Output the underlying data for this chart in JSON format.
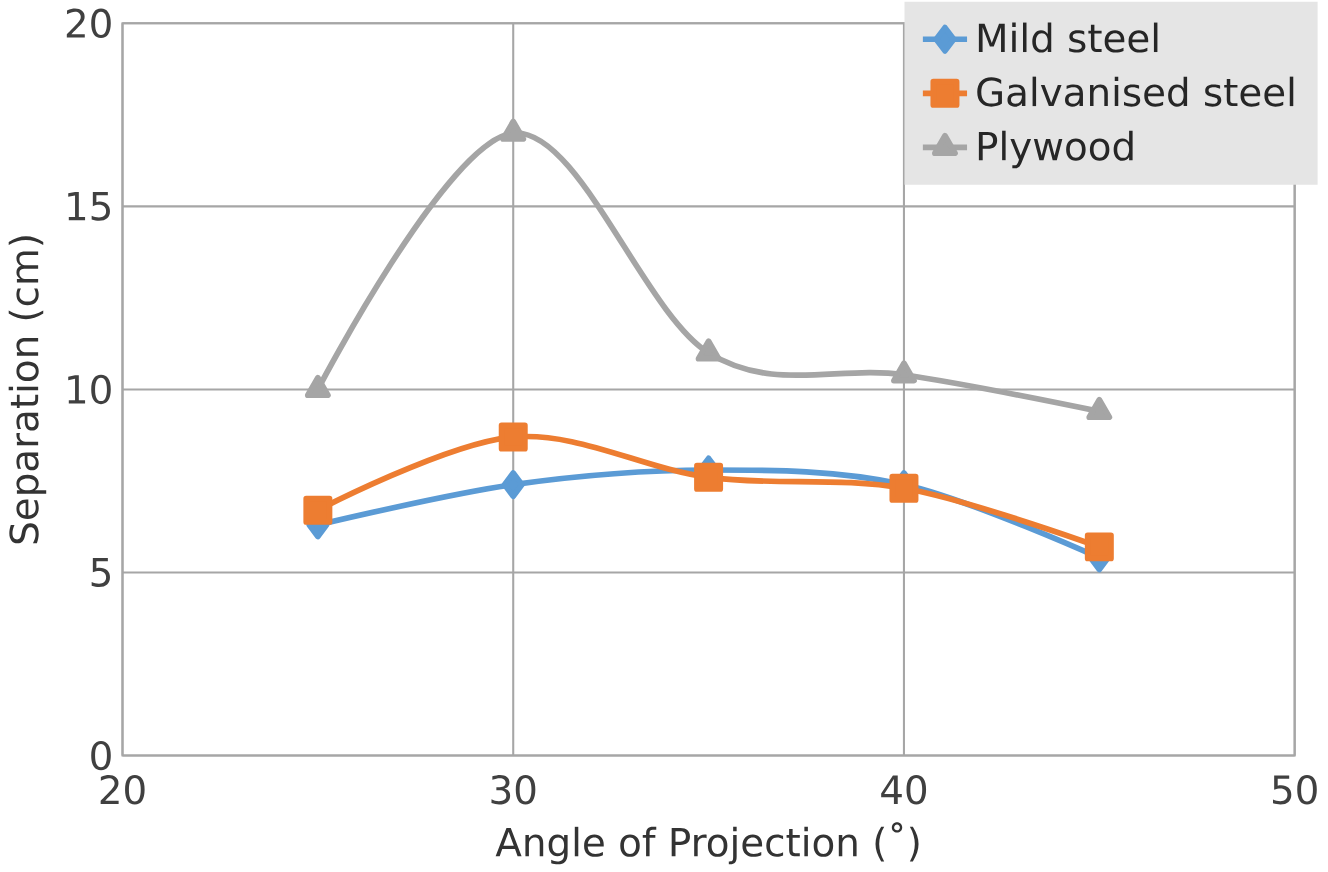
{
  "chart_data": {
    "type": "line",
    "xlabel": "Angle of Projection (˚)",
    "ylabel": "Separation (cm)",
    "x": [
      25,
      30,
      35,
      40,
      45
    ],
    "series": [
      {
        "name": "Mild steel",
        "color": "#5b9bd5",
        "marker": "diamond",
        "values": [
          6.3,
          7.4,
          7.8,
          7.4,
          5.4
        ]
      },
      {
        "name": "Galvanised steel",
        "color": "#ed7d31",
        "marker": "square",
        "values": [
          6.7,
          8.7,
          7.6,
          7.3,
          5.7
        ]
      },
      {
        "name": "Plywood",
        "color": "#a5a5a5",
        "marker": "triangle",
        "values": [
          10.0,
          17.0,
          11.0,
          10.4,
          9.4
        ]
      }
    ],
    "xlim": [
      20,
      50
    ],
    "xticks": [
      20,
      30,
      40,
      50
    ],
    "ylim": [
      0,
      20
    ],
    "yticks": [
      0,
      5,
      10,
      15,
      20
    ],
    "grid": true,
    "legend": "top right",
    "line_style": "solid"
  }
}
